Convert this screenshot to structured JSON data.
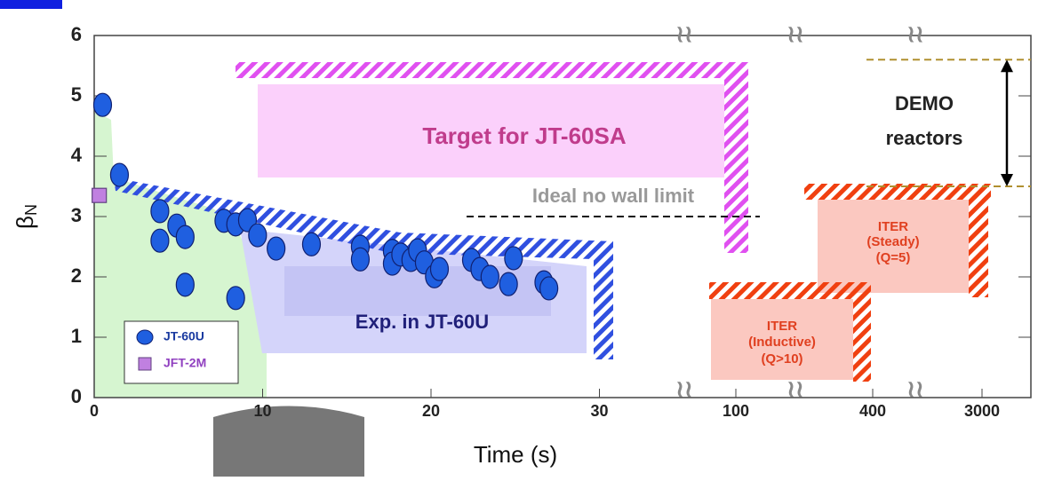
{
  "chart_data": {
    "type": "scatter",
    "x_label": "Time (s)",
    "y_label": {
      "symbol": "β",
      "subscript": "N"
    },
    "ylim": [
      0,
      6
    ],
    "yticks": [
      0,
      1,
      2,
      3,
      4,
      5,
      6
    ],
    "xticks": [
      0,
      10,
      20,
      30,
      100,
      400,
      3000
    ],
    "series": [
      {
        "name": "JT-60U",
        "color": "#1f5fe0",
        "marker": "circle",
        "x": [
          0.5,
          1.5,
          3.9,
          3.9,
          4.9,
          5.4,
          5.4,
          7.7,
          8.4,
          9.1,
          9.7,
          8.4,
          10.8,
          12.9,
          15.8,
          15.8,
          17.7,
          17.7,
          18.2,
          18.8,
          19.2,
          19.6,
          20.2,
          20.5,
          22.4,
          22.9,
          23.5,
          24.6,
          24.9,
          26.7,
          27.0
        ],
        "values": [
          4.85,
          3.69,
          3.09,
          2.6,
          2.85,
          2.66,
          1.87,
          2.93,
          2.87,
          2.94,
          2.69,
          1.65,
          2.47,
          2.54,
          2.5,
          2.29,
          2.43,
          2.22,
          2.37,
          2.28,
          2.44,
          2.24,
          2.01,
          2.13,
          2.28,
          2.13,
          2.0,
          1.88,
          2.31,
          1.91,
          1.81
        ]
      },
      {
        "name": "JFT-2M",
        "color": "#c080e0",
        "marker": "square",
        "x": [
          0.3
        ],
        "values": [
          3.35
        ]
      }
    ],
    "ideal_limit": {
      "label": "Ideal no wall limit",
      "value": 3.0
    },
    "demo": {
      "lines": [
        "DEMO",
        "reactors"
      ],
      "range": [
        3.5,
        5.6
      ]
    },
    "annotations": {
      "target": "Target for JT-60SA",
      "experiment": "Exp. in JT-60U",
      "iter_steady": [
        "ITER",
        "(Steady)",
        "(Q=5)"
      ],
      "iter_inductive": [
        "ITER",
        "(Inductive)",
        "(Q>10)"
      ]
    }
  }
}
